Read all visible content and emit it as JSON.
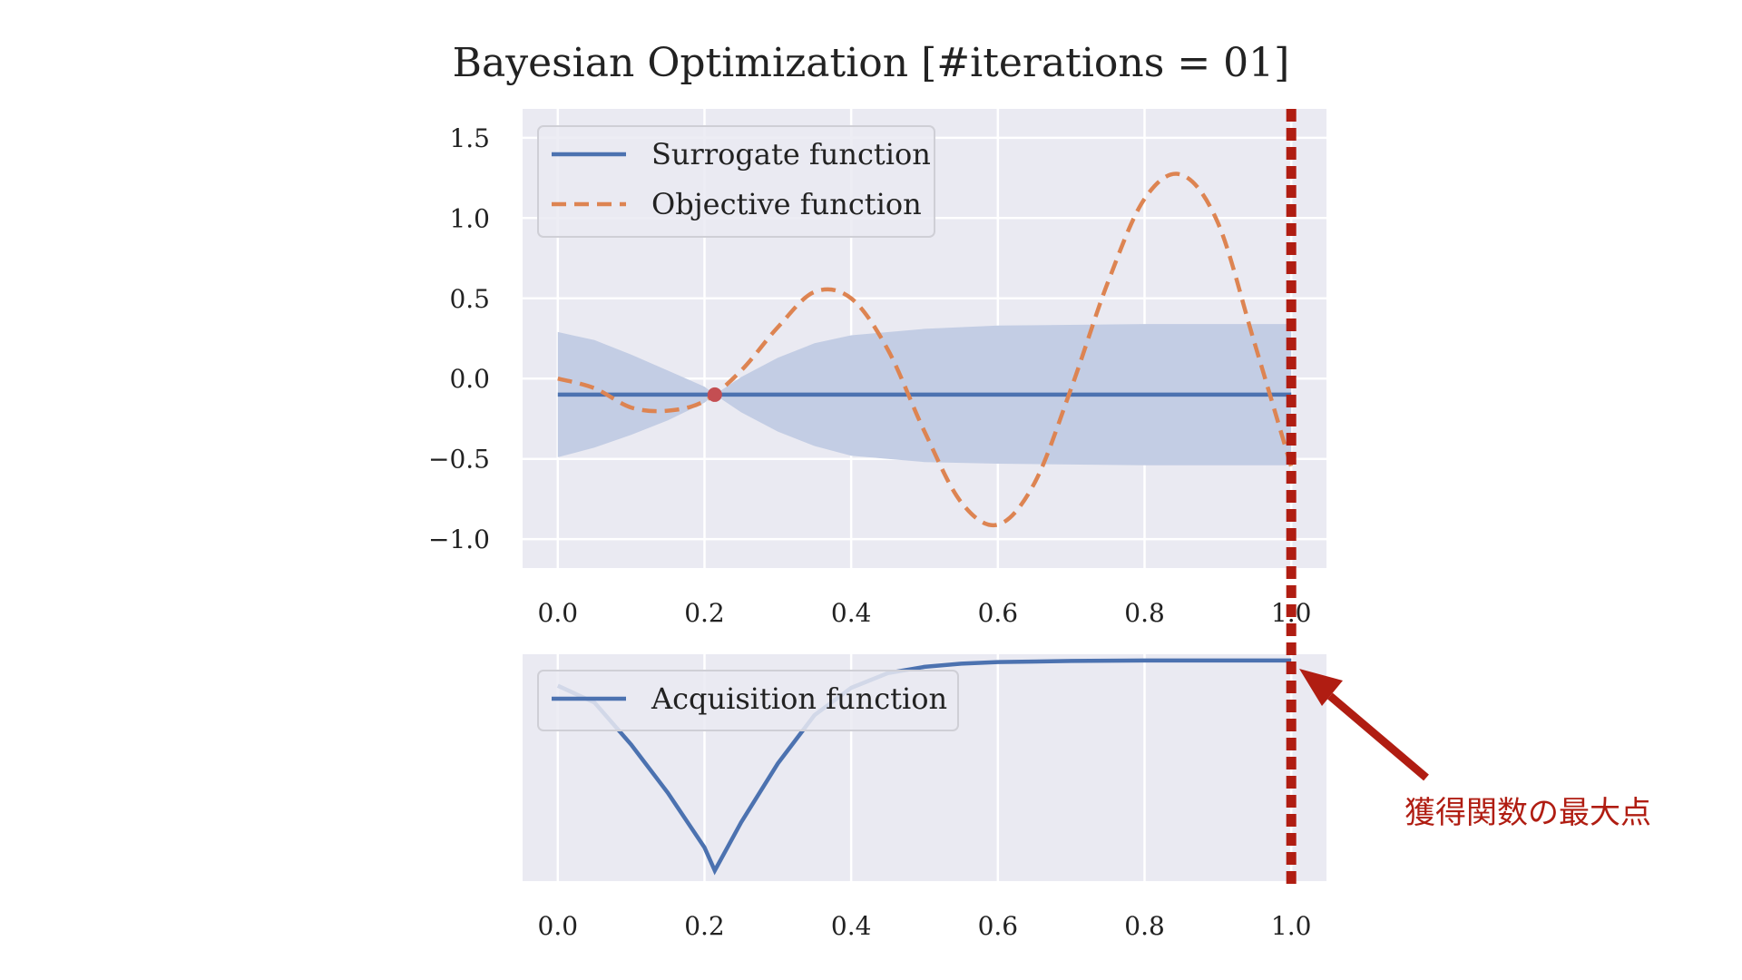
{
  "title": "Bayesian Optimization [#iterations = 01]",
  "colors": {
    "surrogate": "#4c72b0",
    "objective": "#dd8452",
    "acquisition": "#4c72b0",
    "band": "#c3cde4",
    "point": "#c44e52",
    "panel_bg": "#eaeaf2",
    "marker_line": "#b01d12",
    "annotation": "#b01d12"
  },
  "annotation": {
    "text": "獲得関数の最大点",
    "x": 1.0
  },
  "chart_data": [
    {
      "type": "line",
      "legend_position": "top-left",
      "grid": true,
      "xlim": [
        -0.048,
        1.048
      ],
      "ylim": [
        -1.18,
        1.68
      ],
      "xticks": [
        0.0,
        0.2,
        0.4,
        0.6,
        0.8,
        1.0
      ],
      "xtick_labels": [
        "0.0",
        "0.2",
        "0.4",
        "0.6",
        "0.8",
        "1.0"
      ],
      "yticks": [
        1.5,
        1.0,
        0.5,
        0.0,
        -0.5,
        -1.0
      ],
      "ytick_labels": [
        "1.5",
        "1.0",
        "0.5",
        "0.0",
        "−0.5",
        "−1.0"
      ],
      "series": [
        {
          "name": "Surrogate function",
          "style": "solid",
          "x": [
            0.0,
            1.0
          ],
          "y": [
            -0.1,
            -0.1
          ]
        },
        {
          "name": "Objective function",
          "style": "dashed",
          "x": [
            0.0,
            0.05,
            0.1,
            0.15,
            0.2,
            0.25,
            0.3,
            0.35,
            0.4,
            0.45,
            0.5,
            0.55,
            0.6,
            0.65,
            0.7,
            0.75,
            0.8,
            0.85,
            0.9,
            0.95,
            1.0
          ],
          "y": [
            0.0,
            -0.06,
            -0.18,
            -0.2,
            -0.14,
            0.05,
            0.32,
            0.54,
            0.5,
            0.18,
            -0.33,
            -0.77,
            -0.91,
            -0.65,
            -0.06,
            0.6,
            1.12,
            1.27,
            0.97,
            0.22,
            -0.55
          ]
        }
      ],
      "confidence_band": {
        "x": [
          0.0,
          0.05,
          0.1,
          0.15,
          0.2,
          0.214,
          0.25,
          0.3,
          0.35,
          0.4,
          0.5,
          0.6,
          0.8,
          1.0
        ],
        "lower": [
          -0.49,
          -0.43,
          -0.35,
          -0.26,
          -0.15,
          -0.1,
          -0.21,
          -0.33,
          -0.42,
          -0.48,
          -0.52,
          -0.53,
          -0.54,
          -0.54
        ],
        "upper": [
          0.29,
          0.24,
          0.15,
          0.05,
          -0.05,
          -0.1,
          0.01,
          0.13,
          0.22,
          0.27,
          0.31,
          0.33,
          0.34,
          0.34
        ]
      },
      "observations": [
        {
          "x": 0.214,
          "y": -0.1
        }
      ]
    },
    {
      "type": "line",
      "legend_position": "top-left",
      "grid": true,
      "yticks_shown": false,
      "xlim": [
        -0.048,
        1.048
      ],
      "ylim": [
        -0.05,
        1.03
      ],
      "xticks": [
        0.0,
        0.2,
        0.4,
        0.6,
        0.8,
        1.0
      ],
      "xtick_labels": [
        "0.0",
        "0.2",
        "0.4",
        "0.6",
        "0.8",
        "1.0"
      ],
      "series": [
        {
          "name": "Acquisition function",
          "style": "solid",
          "x": [
            0.0,
            0.05,
            0.1,
            0.15,
            0.2,
            0.214,
            0.25,
            0.3,
            0.35,
            0.4,
            0.45,
            0.5,
            0.55,
            0.6,
            0.7,
            0.8,
            0.9,
            1.0
          ],
          "y": [
            0.88,
            0.8,
            0.6,
            0.37,
            0.11,
            0.0,
            0.23,
            0.51,
            0.74,
            0.87,
            0.94,
            0.97,
            0.985,
            0.993,
            0.998,
            1.0,
            1.0,
            1.0
          ]
        }
      ]
    }
  ]
}
